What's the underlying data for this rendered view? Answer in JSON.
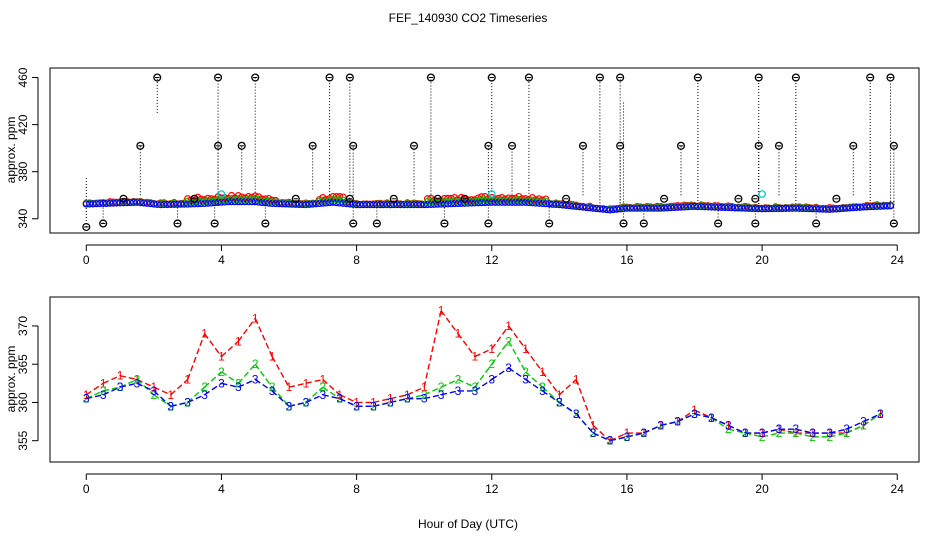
{
  "title": "FEF_140930  CO2 Timeseries",
  "colors": {
    "series1": "#ff0000",
    "series2": "#00cc00",
    "series3": "#0000ff",
    "cyan": "#00cccc",
    "black": "#000000"
  },
  "chart_data": [
    {
      "type": "scatter",
      "panel": "top",
      "ylabel": "approx. ppm",
      "xlabel": "",
      "xlim": [
        -0.6,
        24.2
      ],
      "ylim": [
        333,
        463
      ],
      "xticks": [
        "0",
        "4",
        "8",
        "12",
        "16",
        "20",
        "24"
      ],
      "yticks": [
        "340",
        "380",
        "420",
        "460"
      ],
      "baseline": [
        {
          "x": 0.0,
          "y": 352.5
        },
        {
          "x": 1.0,
          "y": 353.5
        },
        {
          "x": 1.5,
          "y": 354
        },
        {
          "x": 2.2,
          "y": 352
        },
        {
          "x": 3.0,
          "y": 352.5
        },
        {
          "x": 3.5,
          "y": 353
        },
        {
          "x": 4.2,
          "y": 354.5
        },
        {
          "x": 5.0,
          "y": 354.5
        },
        {
          "x": 5.5,
          "y": 353
        },
        {
          "x": 6.5,
          "y": 352
        },
        {
          "x": 7.3,
          "y": 354
        },
        {
          "x": 8.0,
          "y": 352
        },
        {
          "x": 9.0,
          "y": 352
        },
        {
          "x": 10.0,
          "y": 352
        },
        {
          "x": 11.0,
          "y": 353
        },
        {
          "x": 12.0,
          "y": 354
        },
        {
          "x": 13.0,
          "y": 354
        },
        {
          "x": 14.0,
          "y": 352
        },
        {
          "x": 15.0,
          "y": 349
        },
        {
          "x": 15.5,
          "y": 347.5
        },
        {
          "x": 16.0,
          "y": 349
        },
        {
          "x": 17.0,
          "y": 349
        },
        {
          "x": 18.0,
          "y": 350.5
        },
        {
          "x": 19.0,
          "y": 349.5
        },
        {
          "x": 20.0,
          "y": 348.5
        },
        {
          "x": 21.0,
          "y": 349
        },
        {
          "x": 22.0,
          "y": 348
        },
        {
          "x": 23.0,
          "y": 350
        },
        {
          "x": 23.8,
          "y": 351
        }
      ],
      "spikes": [
        {
          "x": 0.0,
          "y": 333,
          "lo": 333,
          "hi": 376
        },
        {
          "x": 0.5,
          "y": 336,
          "lo": 336,
          "hi": 352
        },
        {
          "x": 1.6,
          "y": 402,
          "lo": 360,
          "hi": 402
        },
        {
          "x": 2.1,
          "y": 460,
          "lo": 430,
          "hi": 460
        },
        {
          "x": 2.7,
          "y": 336,
          "lo": 336,
          "hi": 352
        },
        {
          "x": 3.8,
          "y": 336,
          "lo": 336,
          "hi": 352
        },
        {
          "x": 3.9,
          "y": 460,
          "lo": 352,
          "hi": 460
        },
        {
          "x": 3.9,
          "y": 402,
          "lo": 352,
          "hi": 402
        },
        {
          "x": 4.6,
          "y": 402,
          "lo": 365,
          "hi": 402
        },
        {
          "x": 5.0,
          "y": 460,
          "lo": 352,
          "hi": 460
        },
        {
          "x": 5.3,
          "y": 336,
          "lo": 336,
          "hi": 352
        },
        {
          "x": 6.7,
          "y": 402,
          "lo": 365,
          "hi": 402
        },
        {
          "x": 7.2,
          "y": 460,
          "lo": 355,
          "hi": 460
        },
        {
          "x": 7.8,
          "y": 460,
          "lo": 352,
          "hi": 460
        },
        {
          "x": 7.9,
          "y": 402,
          "lo": 352,
          "hi": 402
        },
        {
          "x": 7.9,
          "y": 336,
          "lo": 336,
          "hi": 352
        },
        {
          "x": 8.6,
          "y": 336,
          "lo": 336,
          "hi": 352
        },
        {
          "x": 9.7,
          "y": 402,
          "lo": 360,
          "hi": 402
        },
        {
          "x": 10.2,
          "y": 460,
          "lo": 353,
          "hi": 460
        },
        {
          "x": 10.6,
          "y": 336,
          "lo": 336,
          "hi": 352
        },
        {
          "x": 11.9,
          "y": 336,
          "lo": 336,
          "hi": 352
        },
        {
          "x": 12.0,
          "y": 460,
          "lo": 355,
          "hi": 460
        },
        {
          "x": 11.9,
          "y": 402,
          "lo": 355,
          "hi": 402
        },
        {
          "x": 12.6,
          "y": 402,
          "lo": 358,
          "hi": 402
        },
        {
          "x": 13.1,
          "y": 460,
          "lo": 356,
          "hi": 460
        },
        {
          "x": 13.7,
          "y": 336,
          "lo": 336,
          "hi": 352
        },
        {
          "x": 14.7,
          "y": 402,
          "lo": 360,
          "hi": 402
        },
        {
          "x": 15.2,
          "y": 460,
          "lo": 348,
          "hi": 460
        },
        {
          "x": 15.8,
          "y": 460,
          "lo": 348,
          "hi": 460
        },
        {
          "x": 15.8,
          "y": 402,
          "lo": 348,
          "hi": 402
        },
        {
          "x": 15.9,
          "y": 336,
          "lo": 336,
          "hi": 440
        },
        {
          "x": 16.5,
          "y": 336,
          "lo": 336,
          "hi": 350
        },
        {
          "x": 17.6,
          "y": 402,
          "lo": 360,
          "hi": 402
        },
        {
          "x": 18.1,
          "y": 460,
          "lo": 350,
          "hi": 460
        },
        {
          "x": 18.7,
          "y": 336,
          "lo": 336,
          "hi": 350
        },
        {
          "x": 19.8,
          "y": 336,
          "lo": 336,
          "hi": 350
        },
        {
          "x": 19.9,
          "y": 460,
          "lo": 350,
          "hi": 460
        },
        {
          "x": 19.9,
          "y": 402,
          "lo": 350,
          "hi": 402
        },
        {
          "x": 20.5,
          "y": 402,
          "lo": 360,
          "hi": 402
        },
        {
          "x": 21.0,
          "y": 460,
          "lo": 350,
          "hi": 460
        },
        {
          "x": 21.6,
          "y": 336,
          "lo": 336,
          "hi": 350
        },
        {
          "x": 22.7,
          "y": 402,
          "lo": 360,
          "hi": 402
        },
        {
          "x": 23.2,
          "y": 460,
          "lo": 350,
          "hi": 460
        },
        {
          "x": 23.8,
          "y": 460,
          "lo": 352,
          "hi": 460
        },
        {
          "x": 23.9,
          "y": 402,
          "lo": 352,
          "hi": 402
        },
        {
          "x": 23.9,
          "y": 336,
          "lo": 336,
          "hi": 356
        }
      ],
      "black_markers": [
        {
          "x": 1.1,
          "y": 357
        },
        {
          "x": 3.2,
          "y": 357
        },
        {
          "x": 6.2,
          "y": 357
        },
        {
          "x": 7.8,
          "y": 357
        },
        {
          "x": 9.1,
          "y": 357
        },
        {
          "x": 10.4,
          "y": 357
        },
        {
          "x": 11.2,
          "y": 357
        },
        {
          "x": 14.2,
          "y": 357
        },
        {
          "x": 17.1,
          "y": 357
        },
        {
          "x": 19.3,
          "y": 357
        },
        {
          "x": 19.8,
          "y": 357
        },
        {
          "x": 22.2,
          "y": 357
        }
      ],
      "cyan_markers": [
        {
          "x": 4.0,
          "y": 361
        },
        {
          "x": 12.0,
          "y": 361
        },
        {
          "x": 20.0,
          "y": 361
        }
      ]
    },
    {
      "type": "line",
      "panel": "bottom",
      "ylabel": "approx. ppm",
      "xlabel": "Hour of Day (UTC)",
      "xlim": [
        -0.6,
        24.2
      ],
      "ylim": [
        353,
        373
      ],
      "xticks": [
        "0",
        "4",
        "8",
        "12",
        "16",
        "20",
        "24"
      ],
      "yticks": [
        "355",
        "360",
        "365",
        "370"
      ],
      "x": [
        0.0,
        0.5,
        1.0,
        1.5,
        2.0,
        2.5,
        3.0,
        3.5,
        4.0,
        4.5,
        5.0,
        5.5,
        6.0,
        6.5,
        7.0,
        7.5,
        8.0,
        8.5,
        9.0,
        9.5,
        10.0,
        10.5,
        11.0,
        11.5,
        12.0,
        12.5,
        13.0,
        13.5,
        14.0,
        14.5,
        15.0,
        15.5,
        16.0,
        16.5,
        17.0,
        17.5,
        18.0,
        18.5,
        19.0,
        19.5,
        20.0,
        20.5,
        21.0,
        21.5,
        22.0,
        22.5,
        23.0,
        23.5
      ],
      "series": [
        {
          "name": "1",
          "values": [
            361,
            362.5,
            363.5,
            363,
            362,
            361,
            363,
            369,
            366,
            368,
            371,
            366,
            362,
            362.5,
            363,
            361,
            360,
            360,
            360.5,
            361,
            362,
            372,
            369,
            366,
            367,
            370,
            367,
            364,
            361,
            363,
            357,
            355,
            356,
            356,
            357,
            357.5,
            359,
            358,
            357,
            356,
            356,
            356.5,
            356,
            356,
            356,
            356,
            357,
            358.5
          ]
        },
        {
          "name": "2",
          "values": [
            360.5,
            361.5,
            362,
            363,
            361,
            359.5,
            360,
            362,
            364,
            362.5,
            365,
            362,
            359.5,
            360,
            362,
            360.5,
            359.5,
            359.5,
            360,
            360.5,
            361,
            362,
            363,
            362,
            365,
            368,
            364,
            362,
            360,
            358.5,
            356,
            355,
            355.5,
            356,
            357,
            357.5,
            358.5,
            358,
            356.5,
            356,
            355.5,
            356,
            356,
            355.5,
            355.5,
            356,
            357,
            358.5
          ]
        },
        {
          "name": "3",
          "values": [
            360.5,
            361,
            362,
            362.5,
            361.5,
            359.5,
            360,
            361,
            362.5,
            362,
            363,
            361.5,
            359.5,
            360,
            361,
            360.5,
            359.5,
            359.5,
            360,
            360.5,
            360.5,
            361,
            361.5,
            361.5,
            363,
            364.5,
            363,
            361.5,
            360,
            358.5,
            356,
            355,
            355.5,
            356,
            357,
            357.5,
            358.5,
            358,
            357,
            356,
            356,
            356.5,
            356.5,
            356,
            356,
            356.5,
            357.5,
            358.5
          ]
        }
      ]
    }
  ]
}
